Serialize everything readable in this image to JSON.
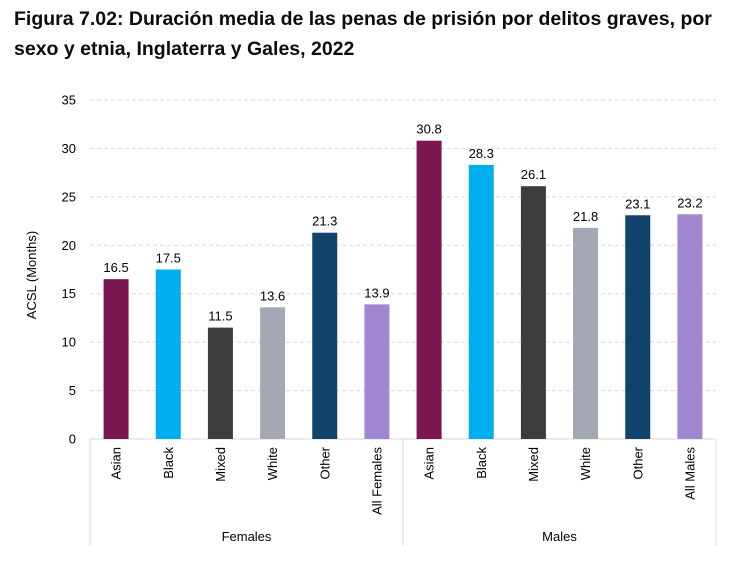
{
  "title": "Figura 7.02: Duración media de las penas de prisión por delitos graves, por sexo y etnia, Inglaterra y Gales, 2022",
  "chart_data": {
    "type": "bar",
    "title": "Figura 7.02: Duración media de las penas de prisión por delitos graves, por sexo y etnia, Inglaterra y Gales, 2022",
    "ylabel": "ACSL (Months)",
    "xlabel": "",
    "ylim": [
      0,
      35
    ],
    "yticks": [
      0,
      5,
      10,
      15,
      20,
      25,
      30,
      35
    ],
    "grid": true,
    "groups": [
      {
        "name": "Females",
        "categories": [
          "Asian",
          "Black",
          "Mixed",
          "White",
          "Other",
          "All Females"
        ],
        "values": [
          16.5,
          17.5,
          11.5,
          13.6,
          21.3,
          13.9
        ],
        "labels": [
          "16.5",
          "17.5",
          "11.5",
          "13.6",
          "21.3",
          "13.9"
        ]
      },
      {
        "name": "Males",
        "categories": [
          "Asian",
          "Black",
          "Mixed",
          "White",
          "Other",
          "All Males"
        ],
        "values": [
          30.8,
          28.3,
          26.1,
          21.8,
          23.1,
          23.2
        ],
        "labels": [
          "30.8",
          "28.3",
          "26.1",
          "21.8",
          "23.1",
          "23.2"
        ]
      }
    ],
    "colors": [
      "#7b1750",
      "#00aeef",
      "#3d3d3d",
      "#a4a8b4",
      "#12436d",
      "#a287d0"
    ]
  }
}
